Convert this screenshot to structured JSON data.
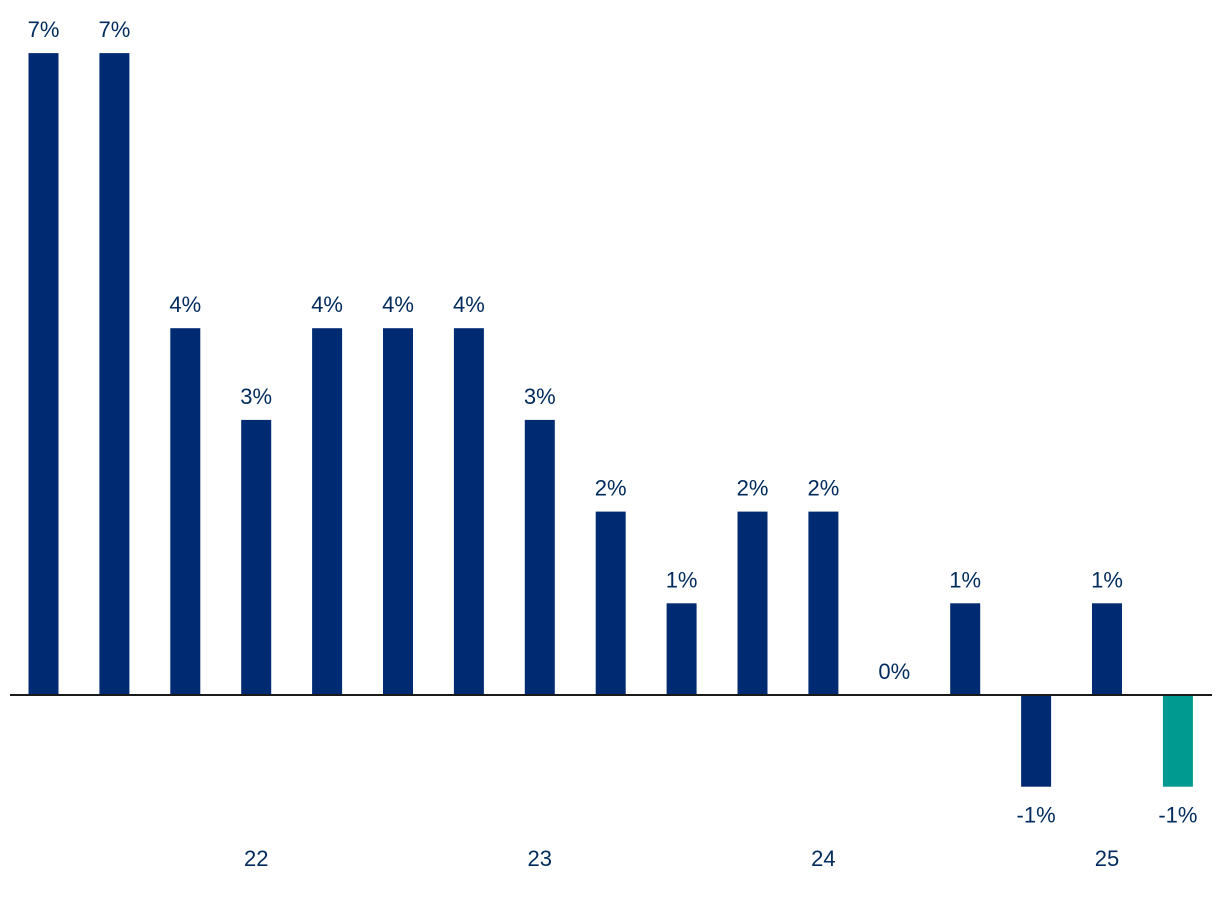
{
  "chart_data": {
    "type": "bar",
    "title": "",
    "xlabel": "",
    "ylabel": "",
    "ylim": [
      -1,
      7
    ],
    "grid": false,
    "legend": "none",
    "values": [
      7,
      7,
      4,
      3,
      4,
      4,
      4,
      3,
      2,
      1,
      2,
      2,
      0,
      1,
      -1,
      1,
      -1
    ],
    "data_labels": [
      "7%",
      "7%",
      "4%",
      "3%",
      "4%",
      "4%",
      "4%",
      "3%",
      "2%",
      "1%",
      "2%",
      "2%",
      "0%",
      "1%",
      "-1%",
      "1%",
      "-1%"
    ],
    "x_tick_labels": [
      {
        "label": "22",
        "bar_index": 3
      },
      {
        "label": "23",
        "bar_index": 7
      },
      {
        "label": "24",
        "bar_index": 11
      },
      {
        "label": "25",
        "bar_index": 15
      }
    ],
    "colors": {
      "bar": "#002b73",
      "highlight": "#009a90",
      "label": "#002b5c",
      "axis": "#1a1a1a"
    },
    "highlight_index": 16
  }
}
